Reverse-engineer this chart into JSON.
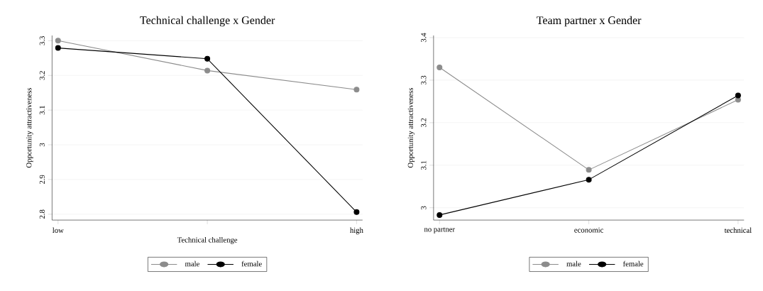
{
  "chart_data": [
    {
      "type": "line",
      "title": "Technical challenge x Gender",
      "xlabel": "Technical challenge",
      "ylabel": "Opportunity attractiveness",
      "categories": [
        "low",
        null,
        "high"
      ],
      "series": [
        {
          "name": "male",
          "color": "#8c8c8c",
          "values": [
            3.3,
            3.214,
            3.159
          ]
        },
        {
          "name": "female",
          "color": "#000000",
          "values": [
            3.279,
            3.248,
            2.806
          ]
        }
      ],
      "ylim": [
        2.783,
        3.315
      ],
      "yticks": [
        2.8,
        2.9,
        3,
        3.1,
        3.2,
        3.3
      ],
      "grid": "y",
      "legend": "bottom",
      "marker": "circle",
      "line_style": "solid"
    },
    {
      "type": "line",
      "title": "Team partner x Gender",
      "ylabel": "Opportunity attractiveness",
      "categories": [
        "no partner",
        "economic",
        "technical"
      ],
      "series": [
        {
          "name": "male",
          "color": "#8c8c8c",
          "values": [
            3.33,
            3.089,
            3.254
          ]
        },
        {
          "name": "female",
          "color": "#000000",
          "values": [
            2.983,
            3.066,
            3.264
          ]
        }
      ],
      "ylim": [
        2.971,
        3.405
      ],
      "yticks": [
        3,
        3.1,
        3.2,
        3.3,
        3.4
      ],
      "grid": "y",
      "legend": "bottom",
      "marker": "circle",
      "line_style": "solid"
    }
  ]
}
